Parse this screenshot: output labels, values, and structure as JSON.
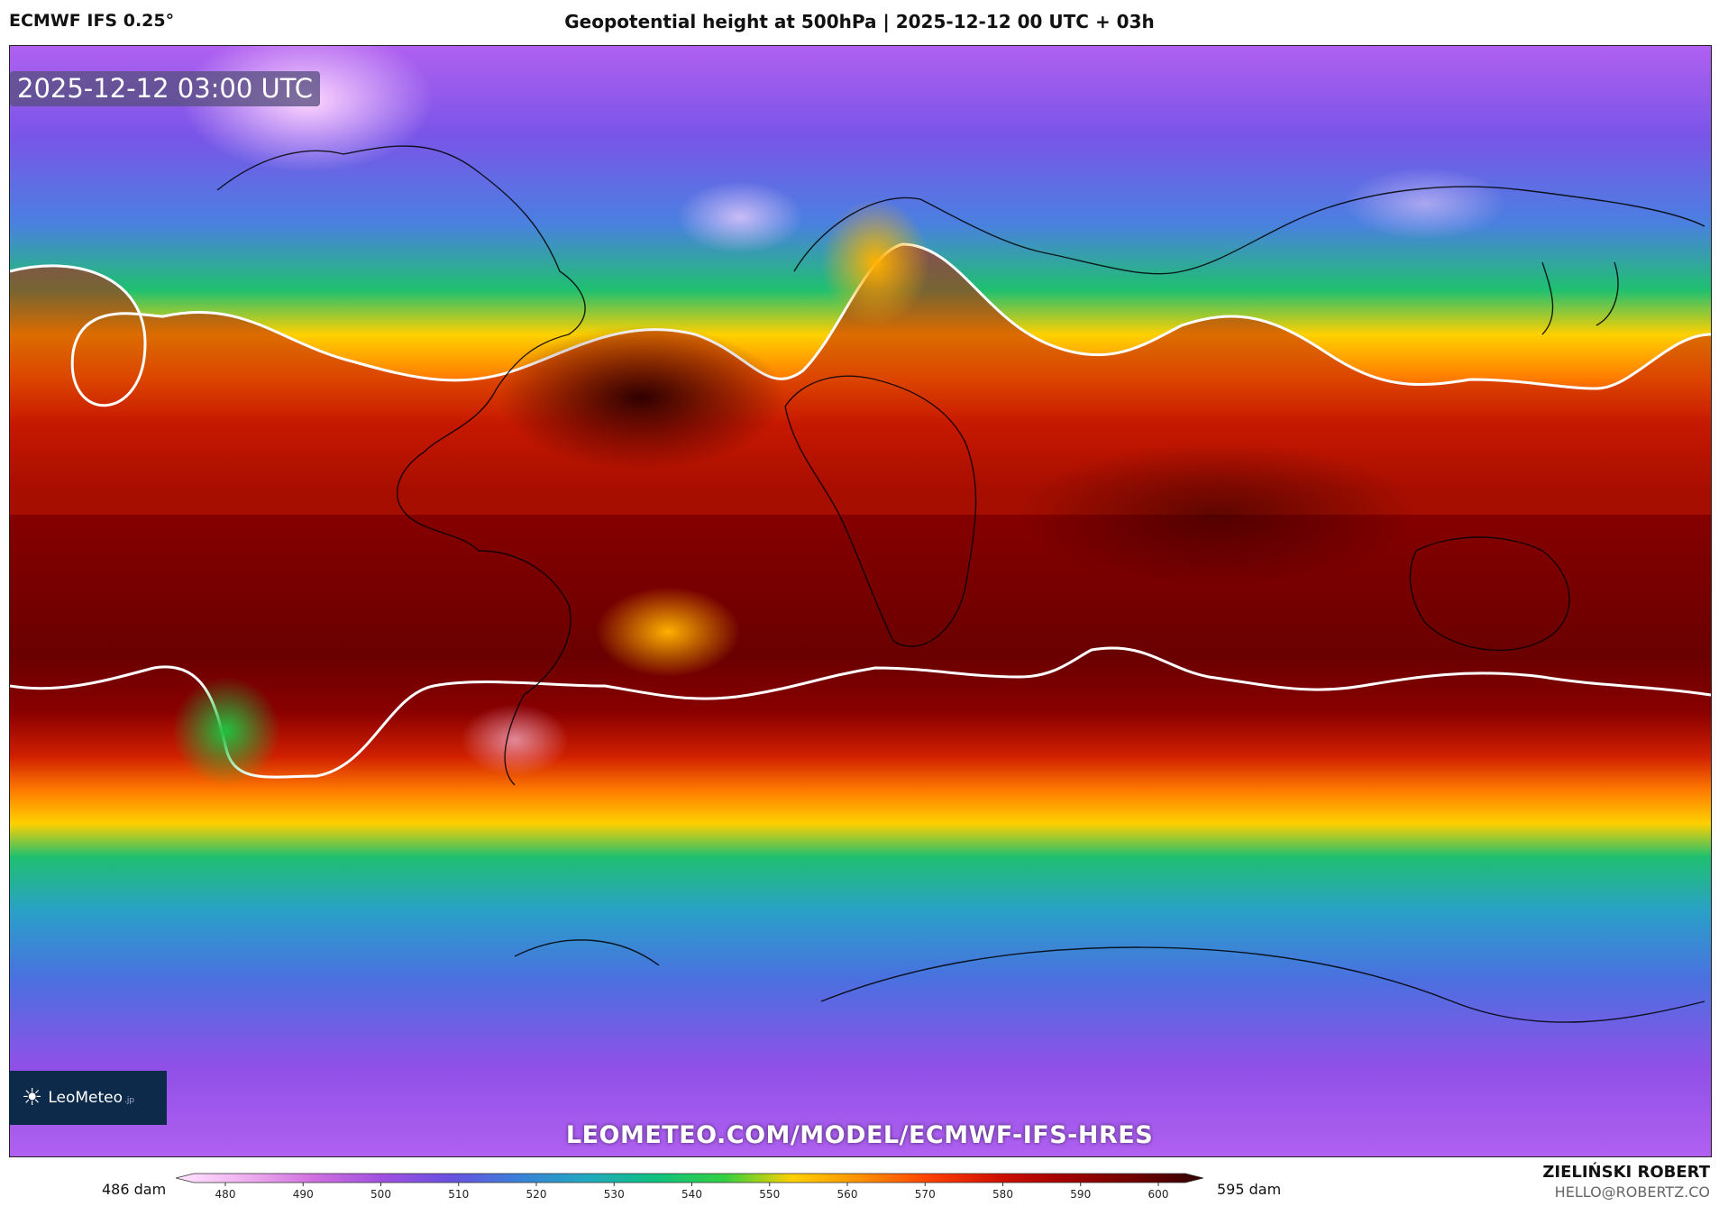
{
  "header": {
    "model": "ECMWF IFS 0.25°",
    "title": "Geopotential height at 500hPa | 2025-12-12 00 UTC + 03h"
  },
  "map": {
    "valid_time": "2025-12-12 03:00 UTC",
    "watermark": "LEOMETEO.COM/MODEL/ECMWF-IFS-HRES",
    "logo_text": "LeoMeteo",
    "logo_suffix": ".jp",
    "logo_icon": "sun-icon"
  },
  "colorbar": {
    "min_label": "486 dam",
    "max_label": "595 dam",
    "ticks": [
      "480",
      "490",
      "500",
      "510",
      "520",
      "530",
      "540",
      "550",
      "560",
      "570",
      "580",
      "590",
      "600"
    ],
    "colors": [
      "#ffe6ff",
      "#f0b0f0",
      "#d070e0",
      "#a050e0",
      "#6a50e0",
      "#3a80d8",
      "#20a8c0",
      "#10c080",
      "#30d040",
      "#ffd000",
      "#ff9000",
      "#ff4000",
      "#d01000",
      "#a00000",
      "#700000",
      "#300000"
    ]
  },
  "footer": {
    "author": "ZIELIŃSKI ROBERT",
    "email": "HELLO@ROBERTZ.CO"
  }
}
